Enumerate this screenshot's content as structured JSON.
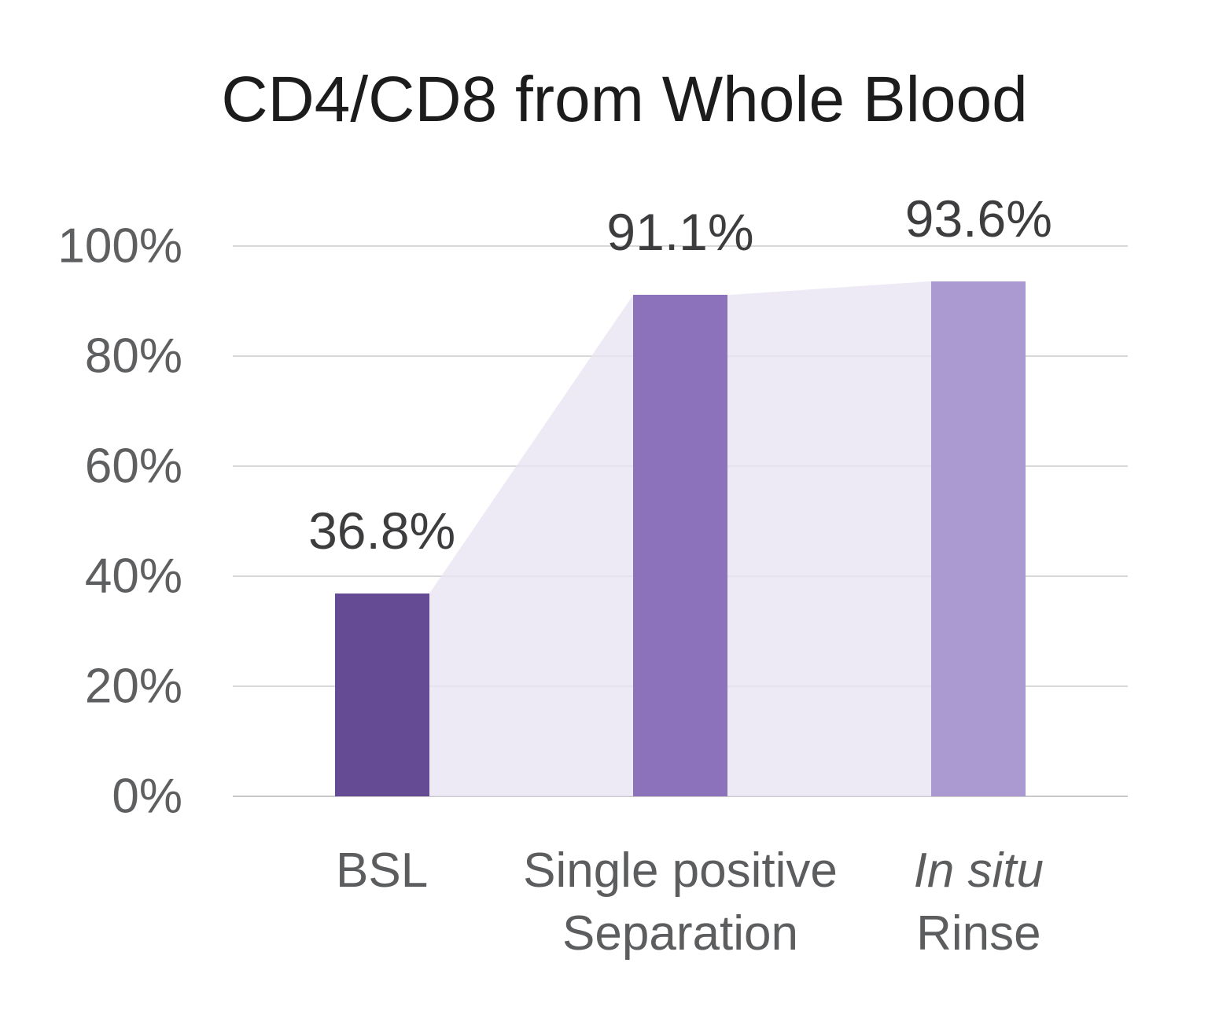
{
  "title": "CD4/CD8 from Whole Blood",
  "chart_data": {
    "type": "bar",
    "title": "CD4/CD8 from Whole Blood",
    "categories": [
      {
        "slug": "bsl",
        "lines": [
          "BSL"
        ],
        "italics": [
          false
        ]
      },
      {
        "slug": "single-positive-separation",
        "lines": [
          "Single positive",
          "Separation"
        ],
        "italics": [
          false,
          false
        ]
      },
      {
        "slug": "in-situ-rinse",
        "lines": [
          "In situ",
          "Rinse"
        ],
        "italics": [
          true,
          false
        ]
      }
    ],
    "values": [
      36.8,
      91.1,
      93.6
    ],
    "value_labels": [
      "36.8%",
      "91.1%",
      "93.6%"
    ],
    "bar_colors": [
      "#654b94",
      "#8b72ba",
      "#ab9ad1"
    ],
    "area_overlay": {
      "description": "light step-area band connecting bar tops, drawn behind bars down to baseline",
      "fill_color": "#e9e5f2",
      "fill_opacity": 0.8
    },
    "ylim": [
      0,
      100
    ],
    "yticks": [
      {
        "value": 100,
        "label": "100%"
      },
      {
        "value": 80,
        "label": "80%"
      },
      {
        "value": 60,
        "label": "60%"
      },
      {
        "value": 40,
        "label": "40%"
      },
      {
        "value": 20,
        "label": "20%"
      },
      {
        "value": 0,
        "label": "0%"
      }
    ],
    "xlabel": "",
    "ylabel": "",
    "grid": true,
    "legend": false
  },
  "colors": {
    "background": "#ffffff",
    "gridline": "#d8d8d8",
    "baseline": "#c9c9c9",
    "axis_text": "#5e5f61",
    "value_label_text": "#3d3d3f",
    "title_text": "#1c1c1c"
  }
}
